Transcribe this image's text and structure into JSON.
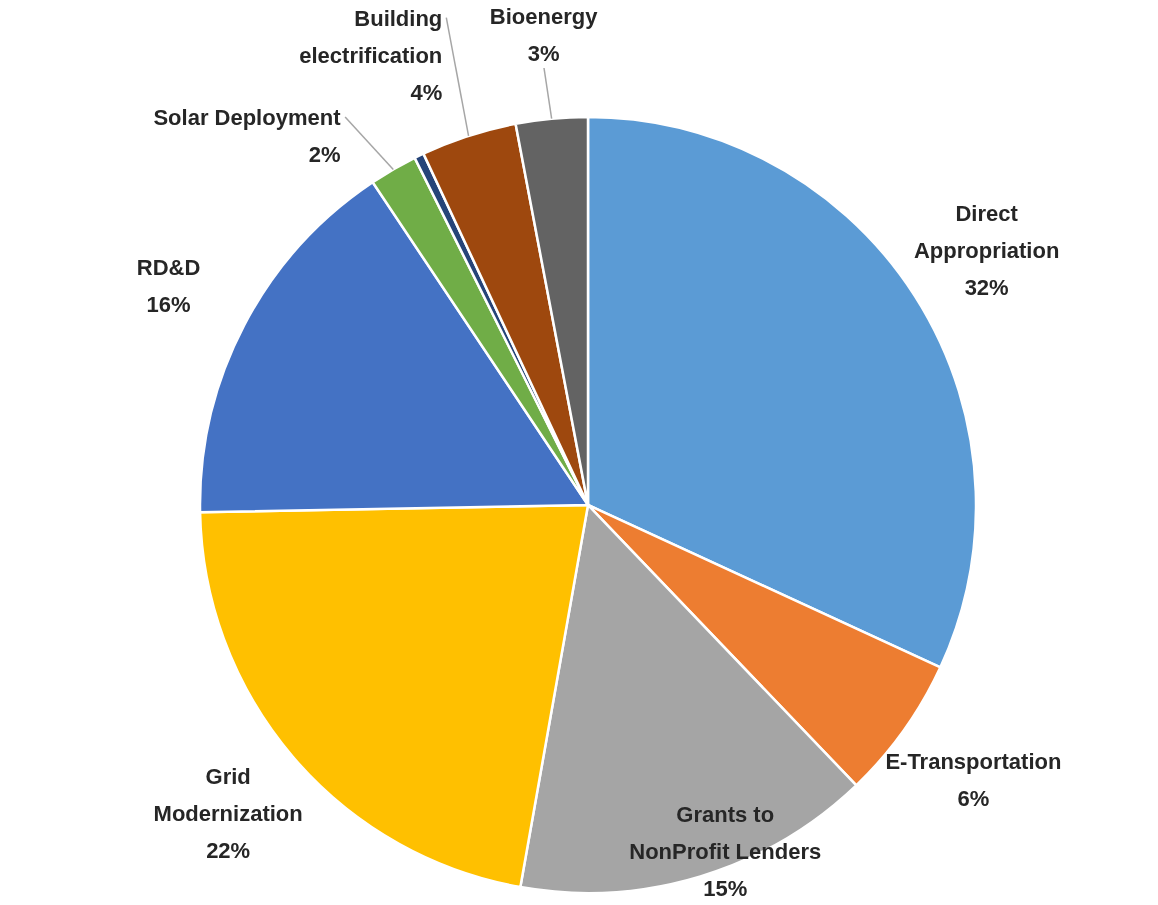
{
  "chart_data": {
    "type": "pie",
    "categories": [
      "Direct Appropriation",
      "E-Transportation",
      "Grants to NonProfit Lenders",
      "Grid Modernization",
      "RD&D",
      "Solar Deployment",
      null,
      "Building electrification",
      "Bioenergy"
    ],
    "values": [
      32,
      6,
      15,
      22,
      16,
      2,
      0.4,
      4,
      3
    ],
    "colors": [
      "#5b9bd5",
      "#ed7d31",
      "#a5a5a5",
      "#ffc000",
      "#4472c4",
      "#70ad47",
      "#264478",
      "#9e480e",
      "#636363"
    ],
    "value_labels": [
      "32%",
      "6%",
      "15%",
      "22%",
      "16%",
      "2%",
      null,
      "4%",
      "3%"
    ],
    "legend": false
  }
}
